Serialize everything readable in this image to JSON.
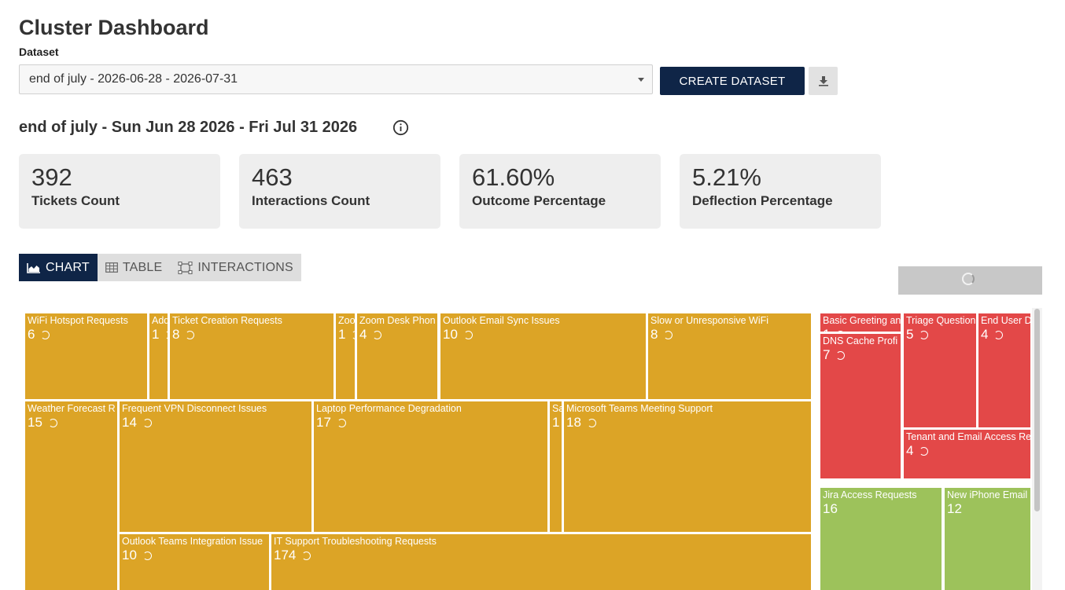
{
  "header": {
    "title": "Cluster Dashboard",
    "dataset_label": "Dataset",
    "dataset_selected": "end of july - 2026-06-28 - 2026-07-31",
    "create_label": "CREATE DATASET"
  },
  "subtitle": "end of july - Sun Jun 28 2026 - Fri Jul 31 2026",
  "stats": [
    {
      "value": "392",
      "label": "Tickets Count"
    },
    {
      "value": "463",
      "label": "Interactions Count"
    },
    {
      "value": "61.60%",
      "label": "Outcome Percentage"
    },
    {
      "value": "5.21%",
      "label": "Deflection Percentage"
    }
  ],
  "tabs": [
    {
      "label": "CHART",
      "icon": "area-chart-icon",
      "active": true
    },
    {
      "label": "TABLE",
      "icon": "table-icon",
      "active": false
    },
    {
      "label": "INTERACTIONS",
      "icon": "interactions-icon",
      "active": false
    }
  ],
  "colors": {
    "yellow": "#dca426",
    "red": "#e34848",
    "green": "#9dc25b",
    "navy": "#0f2547"
  },
  "treemap": {
    "tiles": [
      {
        "label": "WiFi Hotspot Requests",
        "count": "6",
        "color": "yellow"
      },
      {
        "label": "Add",
        "count": "1",
        "color": "yellow"
      },
      {
        "label": "Ticket Creation Requests",
        "count": "8",
        "color": "yellow"
      },
      {
        "label": "Zoo",
        "count": "1",
        "color": "yellow"
      },
      {
        "label": "Zoom Desk Phon",
        "count": "4",
        "color": "yellow"
      },
      {
        "label": "Outlook Email Sync Issues",
        "count": "10",
        "color": "yellow"
      },
      {
        "label": "Slow or Unresponsive WiFi",
        "count": "8",
        "color": "yellow"
      },
      {
        "label": "Weather Forecast R",
        "count": "15",
        "color": "yellow"
      },
      {
        "label": "Frequent VPN Disconnect Issues",
        "count": "14",
        "color": "yellow"
      },
      {
        "label": "Laptop Performance Degradation",
        "count": "17",
        "color": "yellow"
      },
      {
        "label": "Sa",
        "count": "1",
        "color": "yellow"
      },
      {
        "label": "Microsoft Teams Meeting Support",
        "count": "18",
        "color": "yellow"
      },
      {
        "label": "Outlook Teams Integration Issue",
        "count": "10",
        "color": "yellow"
      },
      {
        "label": "IT Support Troubleshooting Requests",
        "count": "174",
        "color": "yellow"
      },
      {
        "label": "Basic Greeting an",
        "count": "1",
        "color": "red"
      },
      {
        "label": "DNS Cache Profi",
        "count": "7",
        "color": "red"
      },
      {
        "label": "Triage Question",
        "count": "5",
        "color": "red"
      },
      {
        "label": "End User D",
        "count": "4",
        "color": "red"
      },
      {
        "label": "Tenant and Email Access Re",
        "count": "4",
        "color": "red"
      },
      {
        "label": "Jira Access Requests",
        "count": "16",
        "color": "green",
        "spinner": false
      },
      {
        "label": "New iPhone Email",
        "count": "12",
        "color": "green",
        "spinner": false
      }
    ]
  }
}
